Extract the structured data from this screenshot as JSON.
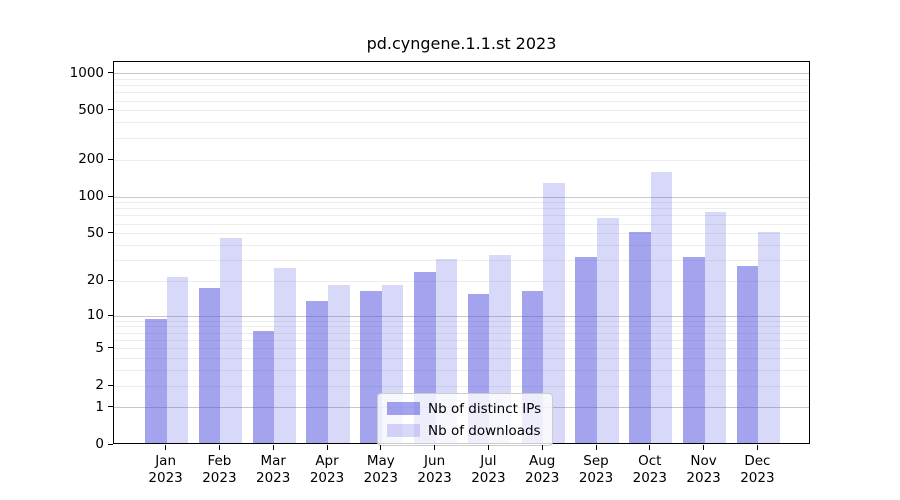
{
  "chart_data": {
    "type": "bar",
    "title": "pd.cyngene.1.1.st 2023",
    "categories": [
      "Jan",
      "Feb",
      "Mar",
      "Apr",
      "May",
      "Jun",
      "Jul",
      "Aug",
      "Sep",
      "Oct",
      "Nov",
      "Dec"
    ],
    "x_tick_second_line": "2023",
    "series": [
      {
        "name": "Nb of distinct IPs",
        "color": "rgba(71,71,221,0.5)",
        "values": [
          9,
          17,
          7,
          13,
          16,
          23,
          15,
          16,
          31,
          50,
          31,
          26
        ]
      },
      {
        "name": "Nb of downloads",
        "color": "rgba(71,71,221,0.21)",
        "values": [
          21,
          44,
          25,
          18,
          18,
          30,
          32,
          125,
          65,
          155,
          72,
          50
        ]
      }
    ],
    "y_scale": "log1p",
    "ylim": [
      0,
      1244
    ],
    "y_ticks": [
      1000,
      500,
      200,
      100,
      50,
      20,
      10,
      5,
      2,
      1,
      0
    ],
    "y_gridlines_major": [
      1,
      10,
      100,
      1000
    ],
    "y_gridlines_minor": [
      2,
      3,
      4,
      5,
      6,
      7,
      8,
      9,
      20,
      30,
      40,
      50,
      60,
      70,
      80,
      90,
      200,
      300,
      400,
      500,
      600,
      700,
      800,
      900
    ],
    "legend_position": "lower center",
    "grid": true,
    "xlabel": "",
    "ylabel": ""
  },
  "colors": {
    "background": "#ffffff",
    "axis": "#000000",
    "major_grid": "#c8c8c8",
    "minor_grid": "#ededed",
    "text": "#000000"
  }
}
